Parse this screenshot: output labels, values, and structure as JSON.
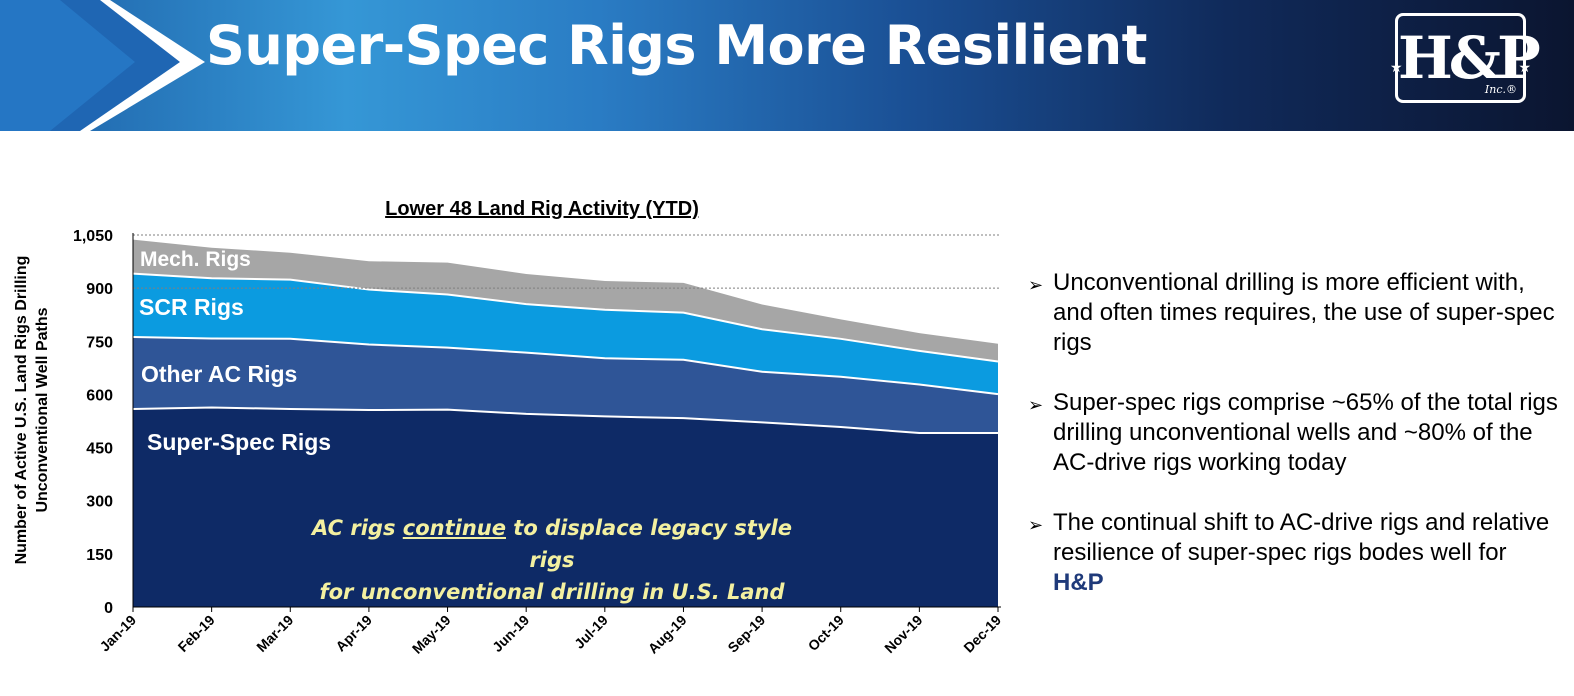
{
  "header": {
    "title": "Super-Spec Rigs More Resilient",
    "logo_text": "H&P",
    "logo_subtext": "Inc.®",
    "colors": {
      "dark": "#0b1530",
      "mid": "#1a4f94",
      "light": "#3597d6"
    }
  },
  "chart_data": {
    "type": "area",
    "stacked": true,
    "title": "Lower 48 Land Rig Activity (YTD)",
    "xlabel": "",
    "ylabel": "Number of Active U.S. Land Rigs Drilling Unconventional Well Paths",
    "ylim": [
      0,
      1050
    ],
    "yticks": [
      0,
      150,
      300,
      450,
      600,
      750,
      900,
      1050
    ],
    "ytick_labels": [
      "0",
      "150",
      "300",
      "450",
      "600",
      "750",
      "900",
      "1,050"
    ],
    "gridlines": [
      900,
      1050
    ],
    "categories": [
      "Jan-19",
      "Feb-19",
      "Mar-19",
      "Apr-19",
      "May-19",
      "Jun-19",
      "Jul-19",
      "Aug-19",
      "Sep-19",
      "Oct-19",
      "Nov-19",
      "Dec-19"
    ],
    "series": [
      {
        "name": "Super-Spec Rigs",
        "label": "Super-Spec Rigs",
        "color": "#0e2a66",
        "values": [
          559,
          563,
          559,
          556,
          557,
          545,
          538,
          533,
          521,
          508,
          491,
          491
        ]
      },
      {
        "name": "Other AC Rigs",
        "label": "Other AC Rigs",
        "color": "#2f5597",
        "values": [
          203,
          195,
          198,
          185,
          175,
          173,
          164,
          165,
          143,
          142,
          137,
          110
        ]
      },
      {
        "name": "SCR Rigs",
        "label": "SCR Rigs",
        "color": "#0b9be0",
        "values": [
          179,
          170,
          167,
          155,
          150,
          137,
          137,
          133,
          120,
          107,
          95,
          92
        ]
      },
      {
        "name": "Mech. Rigs",
        "label": "Mech. Rigs",
        "color": "#a6a6a6",
        "values": [
          96,
          86,
          76,
          80,
          90,
          85,
          81,
          84,
          70,
          55,
          50,
          50
        ]
      }
    ],
    "annotation": {
      "line1_pre": "AC rigs ",
      "line1_underlined": "continue",
      "line1_post": " to displace legacy style rigs",
      "line2": "for unconventional drilling in U.S. Land"
    }
  },
  "bullets": [
    {
      "icon": "arrowhead-bullet-icon",
      "text": "Unconventional drilling is more efficient with, and often times requires, the use of super-spec rigs"
    },
    {
      "icon": "arrowhead-bullet-icon",
      "text": "Super-spec rigs comprise ~65% of the total rigs drilling unconventional wells and ~80% of the AC-drive rigs working today"
    },
    {
      "icon": "arrowhead-bullet-icon",
      "text": "The continual shift to AC-drive rigs and relative resilience of super-spec rigs bodes well for ",
      "brand": "H&P"
    }
  ]
}
